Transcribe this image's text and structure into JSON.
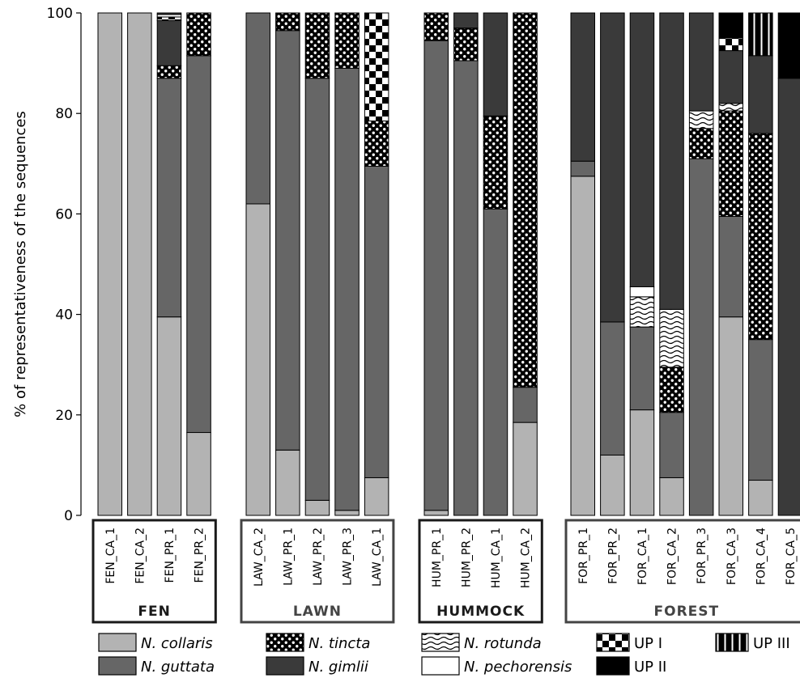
{
  "chart_data": {
    "type": "bar",
    "stacked": true,
    "ylabel": "% of representativeness of the sequences",
    "ylim": [
      0,
      100
    ],
    "yticks": [
      0,
      20,
      40,
      60,
      80,
      100
    ],
    "grid": false,
    "legend_position": "bottom",
    "series_order": [
      "N. collaris",
      "N. guttata",
      "N. tincta",
      "N. gimlii",
      "N. rotunda",
      "N. pechorensis",
      "UP I",
      "UP II",
      "UP III"
    ],
    "series_style": {
      "N. collaris": {
        "fill": "#b3b3b3",
        "pattern": "solid"
      },
      "N. guttata": {
        "fill": "#666666",
        "pattern": "solid"
      },
      "N. tincta": {
        "fill": "#000000",
        "pattern": "dots"
      },
      "N. gimlii": {
        "fill": "#3a3a3a",
        "pattern": "solid"
      },
      "N. rotunda": {
        "fill": "#ffffff",
        "pattern": "waves"
      },
      "N. pechorensis": {
        "fill": "#ffffff",
        "pattern": "solid"
      },
      "UP I": {
        "fill": "#ffffff",
        "pattern": "checker"
      },
      "UP II": {
        "fill": "#000000",
        "pattern": "solid"
      },
      "UP III": {
        "fill": "#000000",
        "pattern": "vstripes"
      }
    },
    "groups": [
      {
        "name": "FEN",
        "label_color": "#1a1a1a",
        "bars": [
          {
            "label": "FEN_CA_1",
            "segments": [
              {
                "series": "N. collaris",
                "value": 100
              }
            ]
          },
          {
            "label": "FEN_CA_2",
            "segments": [
              {
                "series": "N. collaris",
                "value": 100
              }
            ]
          },
          {
            "label": "FEN_PR_1",
            "segments": [
              {
                "series": "N. collaris",
                "value": 39.5
              },
              {
                "series": "N. guttata",
                "value": 47.5
              },
              {
                "series": "N. tincta",
                "value": 2.5
              },
              {
                "series": "N. gimlii",
                "value": 9
              },
              {
                "series": "UP I",
                "value": 0.7
              },
              {
                "series": "N. pechorensis",
                "value": 0.5
              },
              {
                "series": "N. gimlii",
                "value": 0.3
              }
            ]
          },
          {
            "label": "FEN_PR_2",
            "segments": [
              {
                "series": "N. collaris",
                "value": 16.5
              },
              {
                "series": "N. guttata",
                "value": 75
              },
              {
                "series": "N. tincta",
                "value": 8.5
              }
            ]
          }
        ]
      },
      {
        "name": "LAWN",
        "label_color": "#444444",
        "bars": [
          {
            "label": "LAW_CA_2",
            "segments": [
              {
                "series": "N. collaris",
                "value": 62
              },
              {
                "series": "N. guttata",
                "value": 38
              }
            ]
          },
          {
            "label": "LAW_PR_1",
            "segments": [
              {
                "series": "N. collaris",
                "value": 13
              },
              {
                "series": "N. guttata",
                "value": 83.5
              },
              {
                "series": "N. tincta",
                "value": 3.5
              }
            ]
          },
          {
            "label": "LAW_PR_2",
            "segments": [
              {
                "series": "N. collaris",
                "value": 3
              },
              {
                "series": "N. guttata",
                "value": 84
              },
              {
                "series": "N. tincta",
                "value": 13
              }
            ]
          },
          {
            "label": "LAW_PR_3",
            "segments": [
              {
                "series": "N. collaris",
                "value": 1
              },
              {
                "series": "N. guttata",
                "value": 88
              },
              {
                "series": "N. tincta",
                "value": 11
              }
            ]
          },
          {
            "label": "LAW_CA_1",
            "segments": [
              {
                "series": "N. collaris",
                "value": 7.5
              },
              {
                "series": "N. guttata",
                "value": 62
              },
              {
                "series": "N. tincta",
                "value": 9
              },
              {
                "series": "UP I",
                "value": 21.5
              }
            ]
          }
        ]
      },
      {
        "name": "HUMMOCK",
        "label_color": "#1a1a1a",
        "bars": [
          {
            "label": "HUM_PR_1",
            "segments": [
              {
                "series": "N. collaris",
                "value": 1
              },
              {
                "series": "N. guttata",
                "value": 93.5
              },
              {
                "series": "N. tincta",
                "value": 5.5
              }
            ]
          },
          {
            "label": "HUM_PR_2",
            "segments": [
              {
                "series": "N. guttata",
                "value": 90.5
              },
              {
                "series": "N. tincta",
                "value": 6.5
              },
              {
                "series": "N. gimlii",
                "value": 3
              }
            ]
          },
          {
            "label": "HUM_CA_1",
            "segments": [
              {
                "series": "N. guttata",
                "value": 61
              },
              {
                "series": "N. tincta",
                "value": 18.5
              },
              {
                "series": "N. gimlii",
                "value": 20.5
              }
            ]
          },
          {
            "label": "HUM_CA_2",
            "segments": [
              {
                "series": "N. collaris",
                "value": 18.5
              },
              {
                "series": "N. guttata",
                "value": 7
              },
              {
                "series": "N. tincta",
                "value": 74.5
              }
            ]
          }
        ]
      },
      {
        "name": "FOREST",
        "label_color": "#444444",
        "bars": [
          {
            "label": "FOR_PR_1",
            "segments": [
              {
                "series": "N. collaris",
                "value": 67.5
              },
              {
                "series": "N. guttata",
                "value": 3
              },
              {
                "series": "N. gimlii",
                "value": 29.5
              }
            ]
          },
          {
            "label": "FOR_PR_2",
            "segments": [
              {
                "series": "N. collaris",
                "value": 12
              },
              {
                "series": "N. guttata",
                "value": 26.5
              },
              {
                "series": "N. gimlii",
                "value": 61.5
              }
            ]
          },
          {
            "label": "FOR_CA_1",
            "segments": [
              {
                "series": "N. collaris",
                "value": 21
              },
              {
                "series": "N. guttata",
                "value": 16.5
              },
              {
                "series": "N. rotunda",
                "value": 6
              },
              {
                "series": "N. pechorensis",
                "value": 2
              },
              {
                "series": "N. gimlii",
                "value": 54.5
              }
            ]
          },
          {
            "label": "FOR_CA_2",
            "segments": [
              {
                "series": "N. collaris",
                "value": 7.5
              },
              {
                "series": "N. guttata",
                "value": 13
              },
              {
                "series": "N. tincta",
                "value": 9
              },
              {
                "series": "N. rotunda",
                "value": 11.5
              },
              {
                "series": "N. gimlii",
                "value": 59
              }
            ]
          },
          {
            "label": "FOR_PR_3",
            "segments": [
              {
                "series": "N. guttata",
                "value": 71
              },
              {
                "series": "N. tincta",
                "value": 6
              },
              {
                "series": "N. rotunda",
                "value": 3.5
              },
              {
                "series": "N. gimlii",
                "value": 19.5
              }
            ]
          },
          {
            "label": "FOR_CA_3",
            "segments": [
              {
                "series": "N. collaris",
                "value": 39.5
              },
              {
                "series": "N. guttata",
                "value": 20
              },
              {
                "series": "N. tincta",
                "value": 21
              },
              {
                "series": "N. rotunda",
                "value": 1.5
              },
              {
                "series": "N. gimlii",
                "value": 10.5
              },
              {
                "series": "UP I",
                "value": 2.5
              },
              {
                "series": "UP II",
                "value": 5
              }
            ]
          },
          {
            "label": "FOR_CA_4",
            "segments": [
              {
                "series": "N. collaris",
                "value": 7
              },
              {
                "series": "N. guttata",
                "value": 28
              },
              {
                "series": "N. tincta",
                "value": 41
              },
              {
                "series": "N. gimlii",
                "value": 15.5
              },
              {
                "series": "UP III",
                "value": 8.5
              }
            ]
          },
          {
            "label": "FOR_CA_5",
            "segments": [
              {
                "series": "N. gimlii",
                "value": 87
              },
              {
                "series": "UP II",
                "value": 13
              }
            ]
          }
        ]
      }
    ],
    "legend": [
      {
        "label": "N. collaris",
        "italic": true
      },
      {
        "label": "N. tincta",
        "italic": true
      },
      {
        "label": "N. rotunda",
        "italic": true
      },
      {
        "label": "UP I",
        "italic": false
      },
      {
        "label": "UP III",
        "italic": false
      },
      {
        "label": "N. guttata",
        "italic": true
      },
      {
        "label": "N. gimlii",
        "italic": true
      },
      {
        "label": "N. pechorensis",
        "italic": true
      },
      {
        "label": "UP II",
        "italic": false
      }
    ]
  }
}
